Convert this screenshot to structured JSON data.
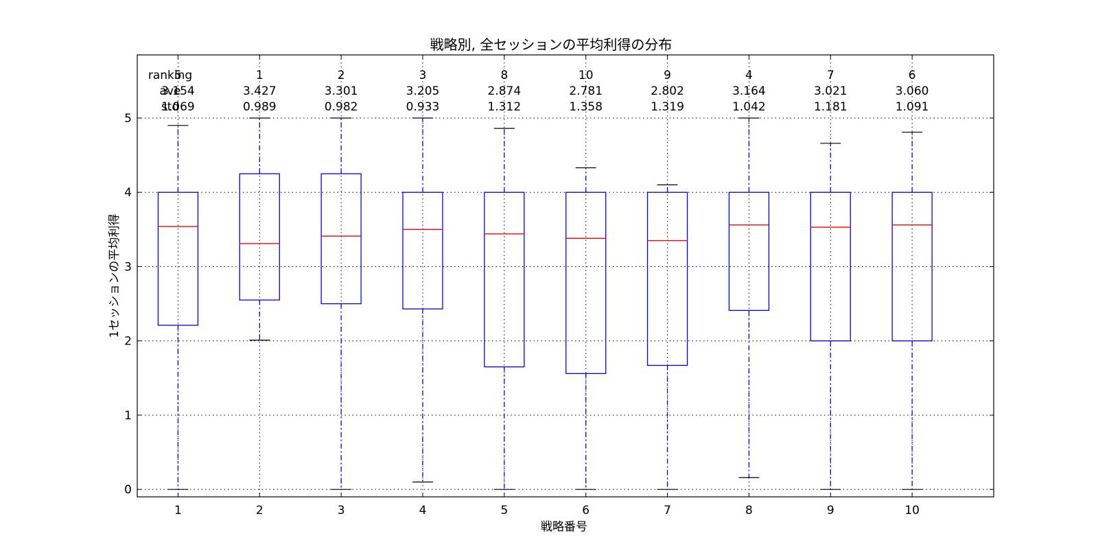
{
  "chart_data": {
    "type": "boxplot",
    "title": "戦略別, 全セッションの平均利得の分布",
    "xlabel": "戦略番号",
    "ylabel": "1セッションの平均利得",
    "xlim": [
      0.5,
      11.0
    ],
    "ylim": [
      -0.1,
      5.85
    ],
    "grid": true,
    "yticks": [
      "0",
      "1",
      "2",
      "3",
      "4",
      "5"
    ],
    "categories": [
      "1",
      "2",
      "3",
      "4",
      "5",
      "6",
      "7",
      "8",
      "9",
      "10"
    ],
    "stat_labels": {
      "ranking": "ranking",
      "ave": "ave",
      "std": "std"
    },
    "ranking": [
      "5",
      "1",
      "2",
      "3",
      "8",
      "10",
      "9",
      "4",
      "7",
      "6"
    ],
    "ave": [
      "3.154",
      "3.427",
      "3.301",
      "3.205",
      "2.874",
      "2.781",
      "2.802",
      "3.164",
      "3.021",
      "3.060"
    ],
    "std": [
      "1.069",
      "0.989",
      "0.982",
      "0.933",
      "1.312",
      "1.358",
      "1.319",
      "1.042",
      "1.181",
      "1.091"
    ],
    "boxes": [
      {
        "whislo": 0.0,
        "q1": 2.21,
        "med": 3.54,
        "q3": 4.0,
        "whishi": 4.9
      },
      {
        "whislo": 2.01,
        "q1": 2.55,
        "med": 3.31,
        "q3": 4.25,
        "whishi": 5.0
      },
      {
        "whislo": 0.0,
        "q1": 2.5,
        "med": 3.41,
        "q3": 4.25,
        "whishi": 5.0
      },
      {
        "whislo": 0.1,
        "q1": 2.43,
        "med": 3.5,
        "q3": 4.0,
        "whishi": 5.0
      },
      {
        "whislo": 0.0,
        "q1": 1.65,
        "med": 3.44,
        "q3": 4.0,
        "whishi": 4.86
      },
      {
        "whislo": 0.0,
        "q1": 1.56,
        "med": 3.38,
        "q3": 4.0,
        "whishi": 4.33
      },
      {
        "whislo": 0.0,
        "q1": 1.67,
        "med": 3.35,
        "q3": 4.0,
        "whishi": 4.1
      },
      {
        "whislo": 0.16,
        "q1": 2.41,
        "med": 3.56,
        "q3": 4.0,
        "whishi": 5.0
      },
      {
        "whislo": 0.0,
        "q1": 2.0,
        "med": 3.53,
        "q3": 4.0,
        "whishi": 4.66
      },
      {
        "whislo": 0.0,
        "q1": 2.0,
        "med": 3.56,
        "q3": 4.0,
        "whishi": 4.81
      }
    ],
    "colors": {
      "box": "#0000ff",
      "median": "#ff0000",
      "whisker": "#0000ff",
      "cap": "#000000"
    }
  }
}
